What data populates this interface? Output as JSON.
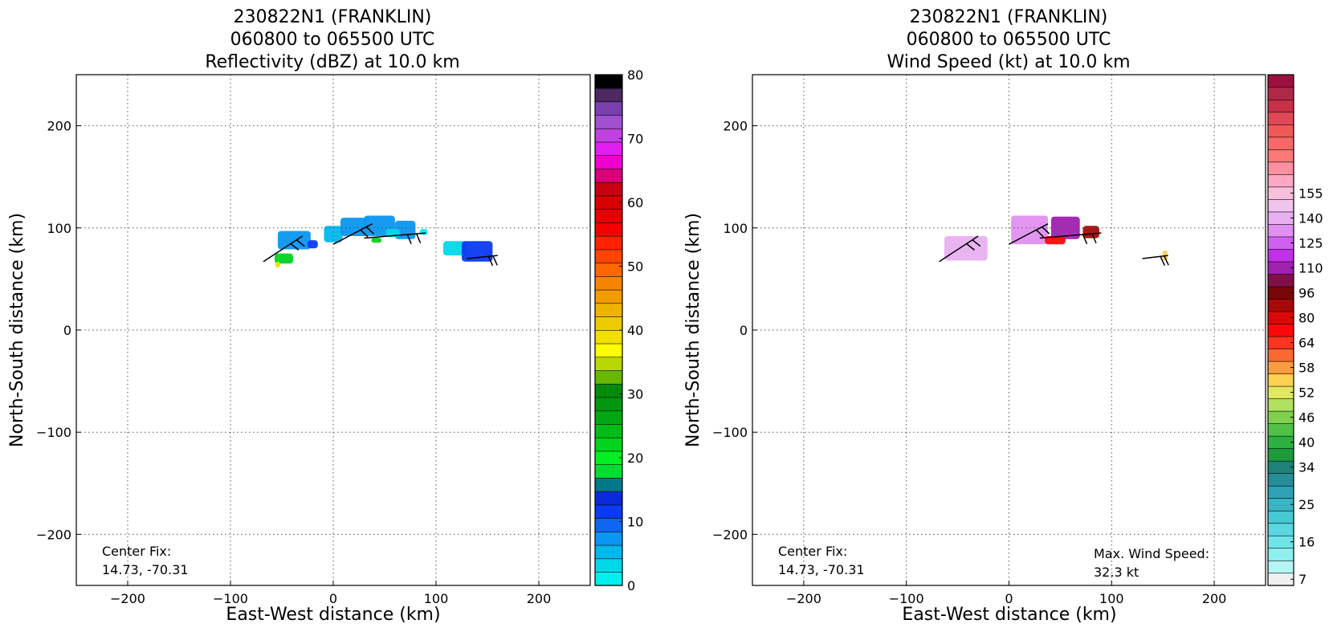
{
  "chart_data": [
    {
      "type": "heatmap",
      "title": [
        "230822N1 (FRANKLIN)",
        "060800 to 065500 UTC",
        "Reflectivity (dBZ) at 10.0 km"
      ],
      "xlabel": "East-West distance (km)",
      "ylabel": "North-South distance (km)",
      "xlim": [
        -250,
        250
      ],
      "ylim": [
        -250,
        250
      ],
      "xticks": [
        -200,
        -100,
        0,
        100,
        200
      ],
      "yticks": [
        -200,
        -100,
        0,
        100,
        200
      ],
      "grid": true,
      "annotation": [
        "Center Fix:",
        "14.73, -70.31"
      ],
      "colorbar": {
        "min": 0,
        "max": 80,
        "tick_labels": [
          "0",
          "10",
          "20",
          "30",
          "40",
          "50",
          "60",
          "70",
          "80"
        ],
        "tick_values": [
          0,
          10,
          20,
          30,
          40,
          50,
          60,
          70,
          80
        ],
        "colors": [
          "#00f0f0",
          "#00d8ea",
          "#00b8ee",
          "#0a96f2",
          "#0f66f2",
          "#0a3af2",
          "#0a2adc",
          "#007888",
          "#00dd30",
          "#00ee22",
          "#00d41c",
          "#00bc16",
          "#00a812",
          "#00960e",
          "#008c0a",
          "#66b800",
          "#b8d800",
          "#ffff00",
          "#f0e000",
          "#eccc00",
          "#f0b400",
          "#f29c00",
          "#f68400",
          "#ff6600",
          "#ff4400",
          "#ff2200",
          "#f50000",
          "#e60000",
          "#d80000",
          "#c80010",
          "#dc0078",
          "#f000d0",
          "#e020f0",
          "#c040e0",
          "#a050d0",
          "#7a40b0",
          "#4a2a60",
          "#000000"
        ]
      },
      "cells": [
        {
          "x": -48,
          "y": 70,
          "v": 22,
          "w": 18,
          "h": 10
        },
        {
          "x": -54,
          "y": 64,
          "v": 38,
          "w": 5,
          "h": 6
        },
        {
          "x": -38,
          "y": 88,
          "v": 8,
          "w": 32,
          "h": 18
        },
        {
          "x": -20,
          "y": 84,
          "v": 12,
          "w": 10,
          "h": 8
        },
        {
          "x": 0,
          "y": 94,
          "v": 6,
          "w": 18,
          "h": 16
        },
        {
          "x": 20,
          "y": 101,
          "v": 8,
          "w": 26,
          "h": 18
        },
        {
          "x": 45,
          "y": 102,
          "v": 7,
          "w": 30,
          "h": 20
        },
        {
          "x": 70,
          "y": 98,
          "v": 8,
          "w": 20,
          "h": 18
        },
        {
          "x": 42,
          "y": 88,
          "v": 22,
          "w": 10,
          "h": 5
        },
        {
          "x": 58,
          "y": 95,
          "v": 3,
          "w": 14,
          "h": 8
        },
        {
          "x": 88,
          "y": 96,
          "v": 1,
          "w": 8,
          "h": 6
        },
        {
          "x": 118,
          "y": 80,
          "v": 3,
          "w": 22,
          "h": 14
        },
        {
          "x": 140,
          "y": 77,
          "v": 12,
          "w": 30,
          "h": 20
        }
      ],
      "barbs": [
        {
          "x1": -68,
          "y1": 67,
          "x2": -30,
          "y2": 92
        },
        {
          "x1": 0,
          "y1": 84,
          "x2": 38,
          "y2": 104
        },
        {
          "x1": 30,
          "y1": 90,
          "x2": 90,
          "y2": 95
        },
        {
          "x1": 130,
          "y1": 70,
          "x2": 160,
          "y2": 73
        }
      ]
    },
    {
      "type": "heatmap",
      "title": [
        "230822N1 (FRANKLIN)",
        "060800 to 065500 UTC",
        "Wind Speed (kt) at 10.0 km"
      ],
      "xlabel": "East-West distance (km)",
      "ylabel": "North-South distance (km)",
      "xlim": [
        -250,
        250
      ],
      "ylim": [
        -250,
        250
      ],
      "xticks": [
        -200,
        -100,
        0,
        100,
        200
      ],
      "yticks": [
        -200,
        -100,
        0,
        100,
        200
      ],
      "grid": true,
      "annotation": [
        "Center Fix:",
        "14.73, -70.31"
      ],
      "annotation2": [
        "Max. Wind Speed:",
        "32.3 kt"
      ],
      "colorbar": {
        "tick_labels": [
          "7",
          "16",
          "25",
          "34",
          "40",
          "46",
          "52",
          "58",
          "64",
          "80",
          "96",
          "110",
          "125",
          "140",
          "155"
        ],
        "tick_bins": [
          0,
          3,
          6,
          9,
          11,
          13,
          15,
          17,
          19,
          21,
          23,
          25,
          27,
          29,
          31
        ],
        "colors": [
          "#f0f0f0",
          "#b4f4f4",
          "#90eeee",
          "#70e4e8",
          "#5ad6e0",
          "#48c8d4",
          "#3ab4c4",
          "#2ea2b4",
          "#268e98",
          "#1e8278",
          "#1c9a3c",
          "#2cb040",
          "#50c048",
          "#80d050",
          "#b0e060",
          "#e0e860",
          "#fcd050",
          "#fc9c40",
          "#fc6830",
          "#fc3420",
          "#fc0808",
          "#dc0808",
          "#a80808",
          "#780808",
          "#801048",
          "#a020b0",
          "#c030e8",
          "#d060f0",
          "#e090f0",
          "#e8b0f0",
          "#f0c4ec",
          "#f8c0dc",
          "#fca8c4",
          "#fc90a0",
          "#fc7878",
          "#f86868",
          "#f05858",
          "#e04858",
          "#c83048",
          "#b02848",
          "#9c1040"
        ]
      },
      "cells": [
        {
          "x": -42,
          "y": 80,
          "v": 29,
          "w": 42,
          "h": 24
        },
        {
          "x": 20,
          "y": 98,
          "v": 28,
          "w": 36,
          "h": 28
        },
        {
          "x": 55,
          "y": 100,
          "v": 25,
          "w": 28,
          "h": 22
        },
        {
          "x": 80,
          "y": 96,
          "v": 22,
          "w": 16,
          "h": 12
        },
        {
          "x": 45,
          "y": 88,
          "v": 20,
          "w": 20,
          "h": 8
        },
        {
          "x": 152,
          "y": 73,
          "v": 16,
          "w": 5,
          "h": 10
        }
      ],
      "barbs": [
        {
          "x1": -68,
          "y1": 67,
          "x2": -30,
          "y2": 92
        },
        {
          "x1": 0,
          "y1": 84,
          "x2": 38,
          "y2": 104
        },
        {
          "x1": 30,
          "y1": 90,
          "x2": 90,
          "y2": 95
        },
        {
          "x1": 130,
          "y1": 70,
          "x2": 155,
          "y2": 73
        }
      ]
    }
  ]
}
